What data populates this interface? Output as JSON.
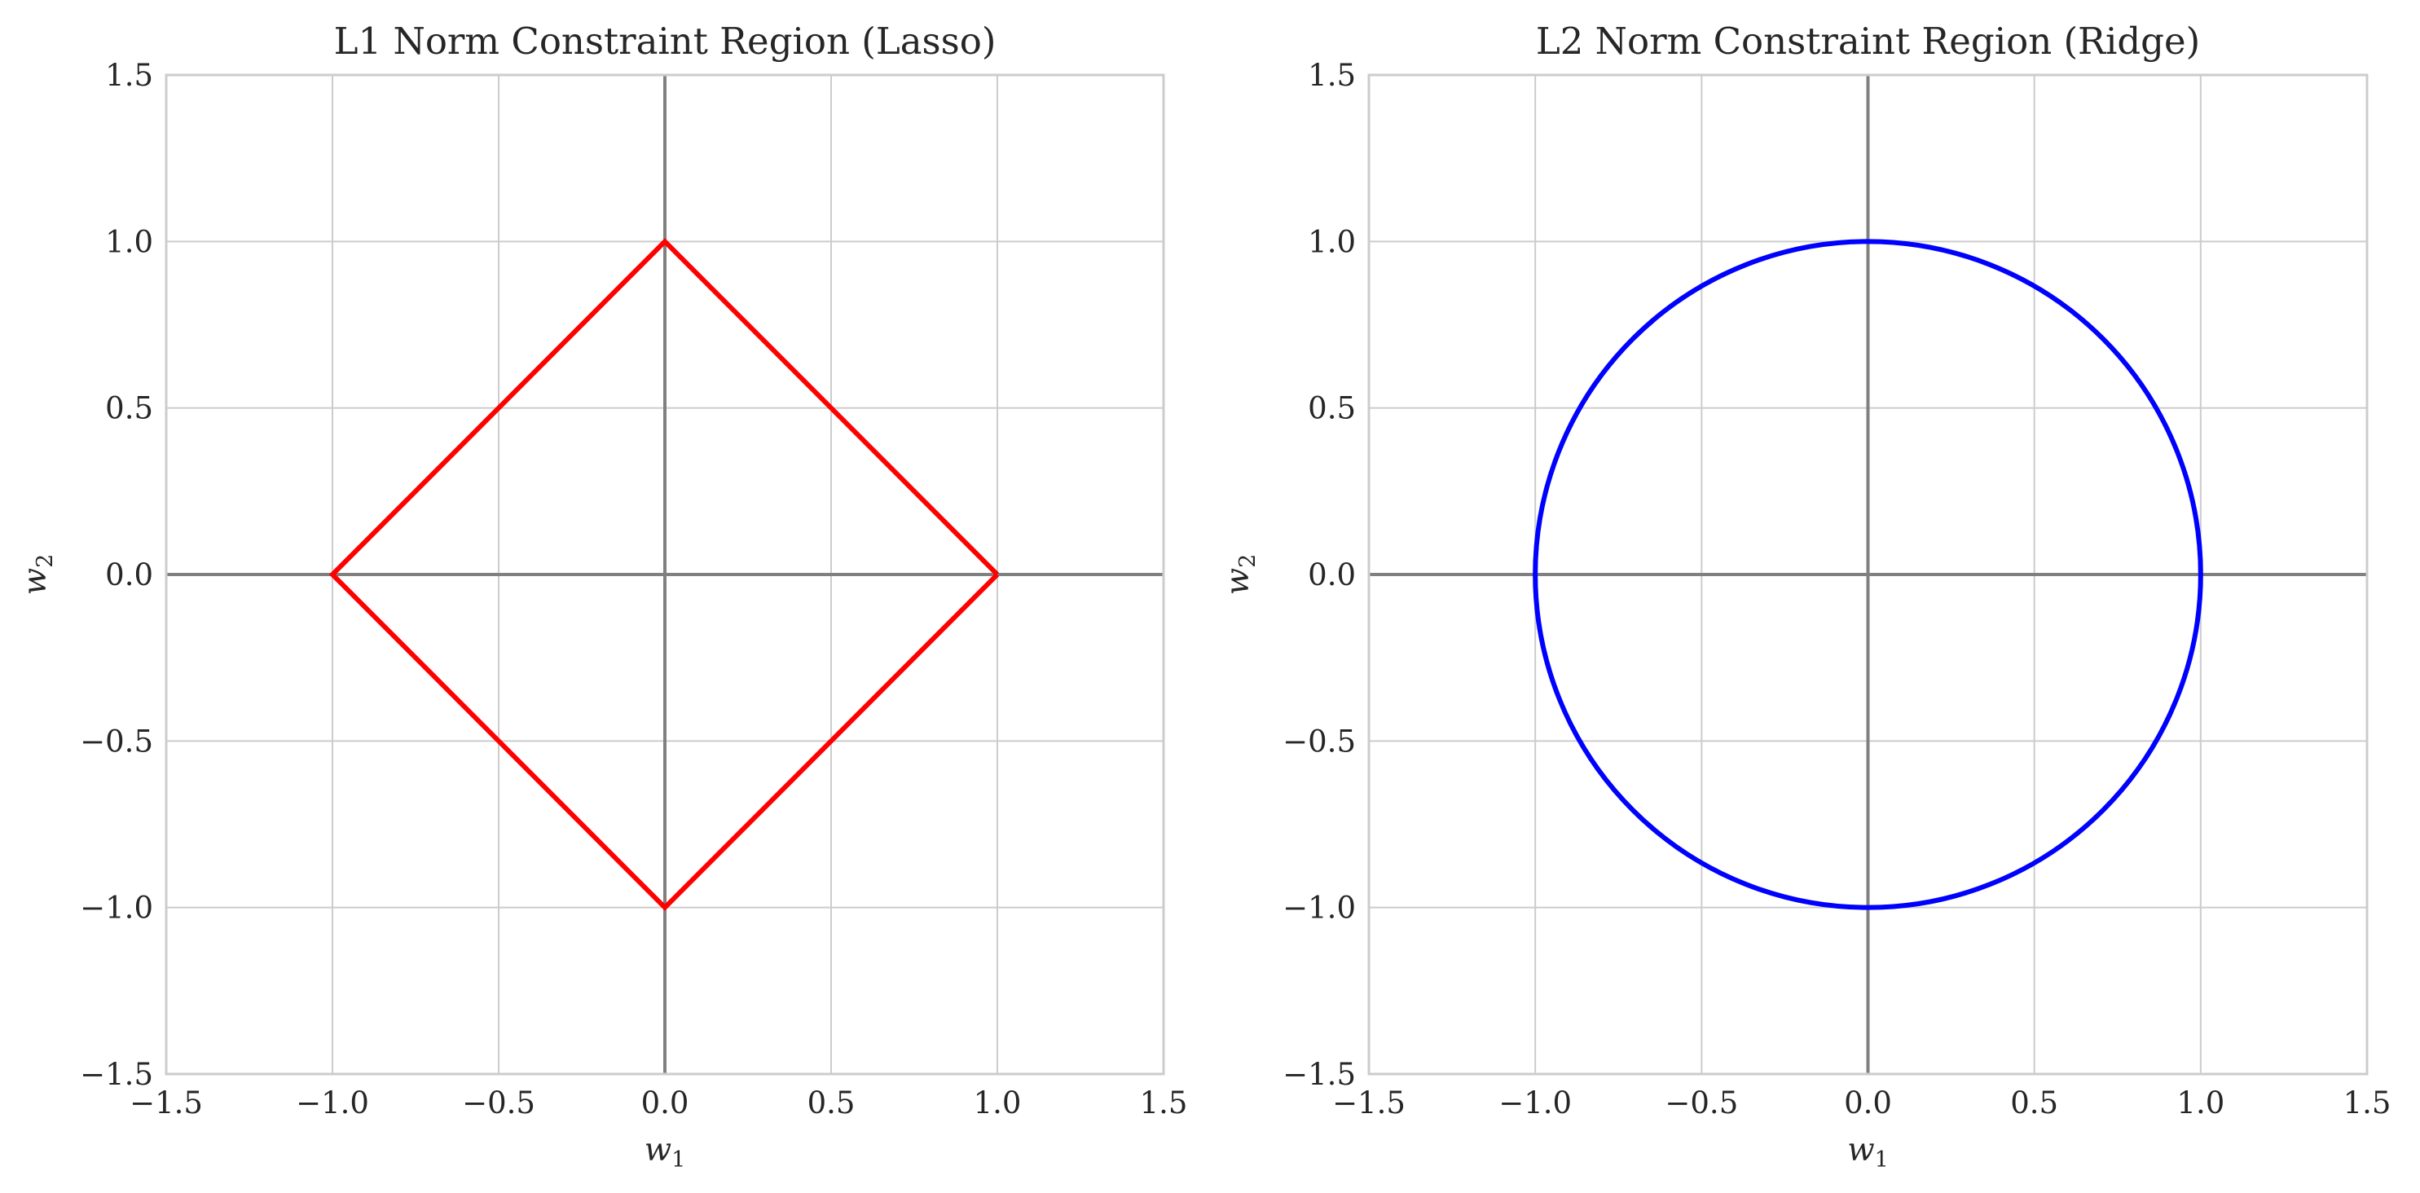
{
  "chart_data": [
    {
      "type": "line",
      "title": "L1 Norm Constraint Region (Lasso)",
      "xlabel": "w1",
      "ylabel": "w2",
      "xlim": [
        -1.5,
        1.5
      ],
      "ylim": [
        -1.5,
        1.5
      ],
      "xticks": [
        -1.5,
        -1.0,
        -0.5,
        0.0,
        0.5,
        1.0,
        1.5
      ],
      "yticks": [
        -1.5,
        -1.0,
        -0.5,
        0.0,
        0.5,
        1.0,
        1.5
      ],
      "grid": true,
      "reference_lines": {
        "x": 0,
        "y": 0,
        "color": "#808080"
      },
      "series": [
        {
          "color": "#ff0000",
          "x": [
            1,
            0,
            -1,
            0,
            1
          ],
          "y": [
            0,
            1,
            0,
            -1,
            0
          ]
        }
      ]
    },
    {
      "type": "line",
      "title": "L2 Norm Constraint Region (Ridge)",
      "xlabel": "w1",
      "ylabel": "w2",
      "xlim": [
        -1.5,
        1.5
      ],
      "ylim": [
        -1.5,
        1.5
      ],
      "xticks": [
        -1.5,
        -1.0,
        -0.5,
        0.0,
        0.5,
        1.0,
        1.5
      ],
      "yticks": [
        -1.5,
        -1.0,
        -0.5,
        0.0,
        0.5,
        1.0,
        1.5
      ],
      "grid": true,
      "reference_lines": {
        "x": 0,
        "y": 0,
        "color": "#808080"
      },
      "series": [
        {
          "color": "#0000ff",
          "shape": "unit circle x^2 + y^2 = 1",
          "center": [
            0,
            0
          ],
          "radius": 1
        }
      ]
    }
  ],
  "tick_texts": {
    "x": [
      "−1.5",
      "−1.0",
      "−0.5",
      "0.0",
      "0.5",
      "1.0",
      "1.5"
    ],
    "y": [
      "−1.5",
      "−1.0",
      "−0.5",
      "0.0",
      "0.5",
      "1.0",
      "1.5"
    ]
  },
  "axis_text": {
    "x_var": "w",
    "x_sub": "1",
    "y_var": "w",
    "y_sub": "2"
  },
  "colors": {
    "grid": "#cccccc",
    "spine": "#cccccc",
    "zero_line": "#808080",
    "text": "#262626"
  }
}
